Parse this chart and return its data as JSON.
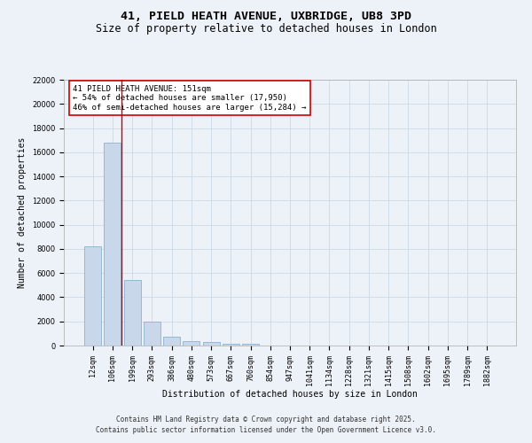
{
  "title_line1": "41, PIELD HEATH AVENUE, UXBRIDGE, UB8 3PD",
  "title_line2": "Size of property relative to detached houses in London",
  "xlabel": "Distribution of detached houses by size in London",
  "ylabel": "Number of detached properties",
  "bar_color": "#c8d8ea",
  "bar_edge_color": "#7aaac8",
  "grid_color": "#c8d4e0",
  "background_color": "#edf2f8",
  "categories": [
    "12sqm",
    "106sqm",
    "199sqm",
    "293sqm",
    "386sqm",
    "480sqm",
    "573sqm",
    "667sqm",
    "760sqm",
    "854sqm",
    "947sqm",
    "1041sqm",
    "1134sqm",
    "1228sqm",
    "1321sqm",
    "1415sqm",
    "1508sqm",
    "1602sqm",
    "1695sqm",
    "1789sqm",
    "1882sqm"
  ],
  "values": [
    8200,
    16800,
    5400,
    1950,
    700,
    380,
    280,
    160,
    150,
    0,
    0,
    0,
    0,
    0,
    0,
    0,
    0,
    0,
    0,
    0,
    0
  ],
  "ylim": [
    0,
    22000
  ],
  "yticks": [
    0,
    2000,
    4000,
    6000,
    8000,
    10000,
    12000,
    14000,
    16000,
    18000,
    20000,
    22000
  ],
  "annotation_text": "41 PIELD HEATH AVENUE: 151sqm\n← 54% of detached houses are smaller (17,950)\n46% of semi-detached houses are larger (15,284) →",
  "vline_color": "#cc0000",
  "annotation_box_color": "#ffffff",
  "annotation_box_edge": "#cc0000",
  "footer_line1": "Contains HM Land Registry data © Crown copyright and database right 2025.",
  "footer_line2": "Contains public sector information licensed under the Open Government Licence v3.0.",
  "title_fontsize": 9.5,
  "subtitle_fontsize": 8.5,
  "axis_label_fontsize": 7,
  "tick_fontsize": 6,
  "annotation_fontsize": 6.5,
  "footer_fontsize": 5.5
}
